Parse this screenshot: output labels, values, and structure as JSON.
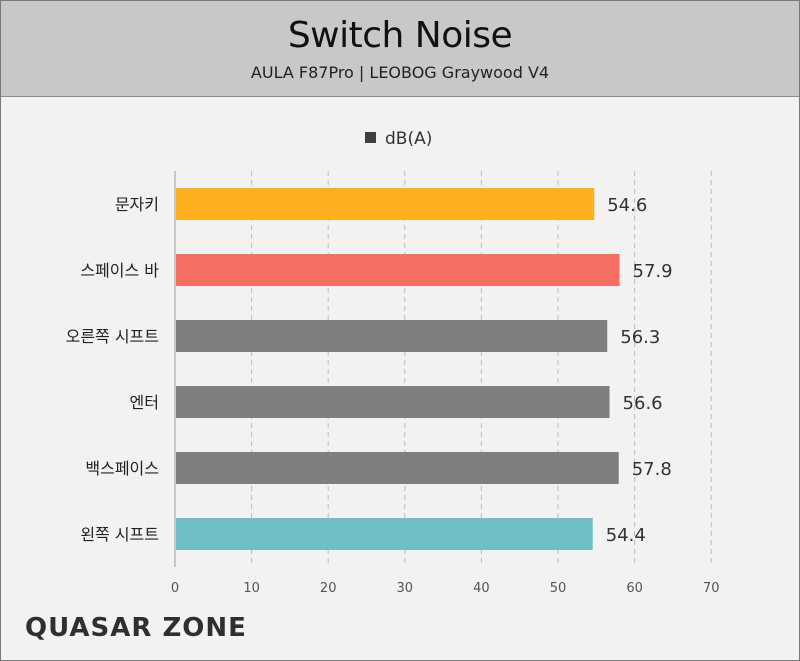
{
  "header": {
    "title": "Switch Noise",
    "subtitle": "AULA F87Pro  |  LEOBOG Graywood V4"
  },
  "chart_data": {
    "type": "bar",
    "orientation": "horizontal",
    "categories": [
      "문자키",
      "스페이스 바",
      "오른쪽 시프트",
      "엔터",
      "백스페이스",
      "왼쪽 시프트"
    ],
    "series": [
      {
        "name": "dB(A)",
        "values": [
          54.6,
          57.9,
          56.3,
          56.6,
          57.8,
          54.4
        ]
      }
    ],
    "value_labels": [
      "54.6",
      "57.9",
      "56.3",
      "56.6",
      "57.8",
      "54.4"
    ],
    "bar_colors": [
      "#fdb01d",
      "#f36f63",
      "#7f7f7f",
      "#7f7f7f",
      "#7f7f7f",
      "#6fbfc8"
    ],
    "legend_color": "#3f3f3f",
    "xlim": [
      0,
      70
    ],
    "x_ticks": [
      "0",
      "10",
      "20",
      "30",
      "40",
      "50",
      "60",
      "70"
    ],
    "grid": true,
    "legend_position": "top"
  },
  "footer": {
    "logo_text": "QUASAR ZONE"
  }
}
